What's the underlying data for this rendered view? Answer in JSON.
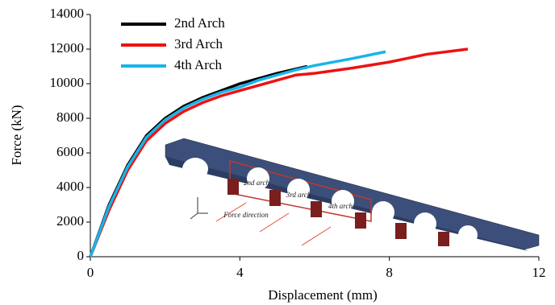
{
  "chart_data": {
    "type": "line",
    "x_label": "Displacement (mm)",
    "y_label": "Force (kN)",
    "xlim": [
      0,
      12
    ],
    "xticks": [
      0,
      4,
      8,
      12
    ],
    "ylim": [
      0,
      14000
    ],
    "yticks": [
      0,
      2000,
      4000,
      6000,
      8000,
      10000,
      12000,
      14000
    ],
    "legend": "top-left",
    "series": [
      {
        "name": "2nd Arch",
        "color": "#000000",
        "x": [
          0,
          0.5,
          1,
          1.5,
          2,
          2.5,
          3,
          3.5,
          4,
          4.5,
          5,
          5.5,
          5.8
        ],
        "values": [
          0,
          3000,
          5300,
          7000,
          8000,
          8700,
          9200,
          9600,
          10000,
          10300,
          10600,
          10850,
          11000
        ]
      },
      {
        "name": "3rd Arch",
        "color": "#ee1111",
        "x": [
          0,
          0.5,
          1,
          1.5,
          2,
          2.5,
          3,
          3.5,
          4,
          5,
          5.5,
          6,
          7,
          8,
          9,
          10.1
        ],
        "values": [
          0,
          2700,
          5000,
          6700,
          7700,
          8400,
          8900,
          9300,
          9600,
          10200,
          10500,
          10600,
          10900,
          11250,
          11700,
          12000
        ]
      },
      {
        "name": "4th Arch",
        "color": "#19b4e8",
        "x": [
          0,
          0.5,
          1,
          1.5,
          2,
          2.5,
          3,
          3.5,
          4,
          4.5,
          5,
          5.5,
          6,
          7,
          7.9
        ],
        "values": [
          0,
          2900,
          5200,
          6900,
          7900,
          8600,
          9100,
          9500,
          9800,
          10200,
          10500,
          10800,
          11050,
          11450,
          11850
        ]
      }
    ],
    "annotations": [
      "2nd arch",
      "3rd arch",
      "4th arch",
      "Force direction"
    ]
  }
}
